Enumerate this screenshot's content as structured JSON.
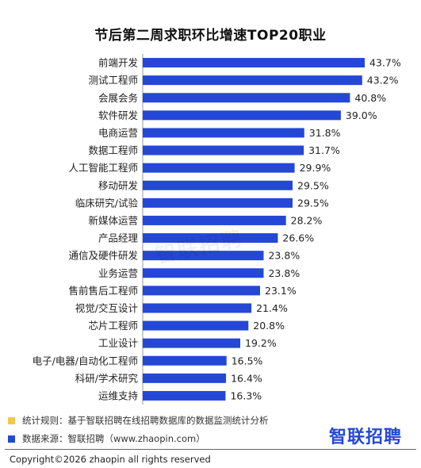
{
  "chart_data": {
    "type": "bar",
    "orientation": "horizontal",
    "title": "节后第二周求职环比增速TOP20职业",
    "categories": [
      "前端开发",
      "测试工程师",
      "会展会务",
      "软件研发",
      "电商运营",
      "数据工程师",
      "人工智能工程师",
      "移动研发",
      "临床研究/试验",
      "新媒体运营",
      "产品经理",
      "通信及硬件研发",
      "业务运营",
      "售前售后工程师",
      "视觉/交互设计",
      "芯片工程师",
      "工业设计",
      "电子/电器/自动化工程师",
      "科研/学术研究",
      "运维支持"
    ],
    "values": [
      43.7,
      43.2,
      40.8,
      39.0,
      31.8,
      31.7,
      29.9,
      29.5,
      29.5,
      28.2,
      26.6,
      23.8,
      23.8,
      23.1,
      21.4,
      20.8,
      19.2,
      16.5,
      16.4,
      16.3
    ],
    "value_labels": [
      "43.7%",
      "43.2%",
      "40.8%",
      "39.0%",
      "31.8%",
      "31.7%",
      "29.9%",
      "29.5%",
      "29.5%",
      "28.2%",
      "26.6%",
      "23.8%",
      "23.8%",
      "23.1%",
      "21.4%",
      "20.8%",
      "19.2%",
      "16.5%",
      "16.4%",
      "16.3%"
    ],
    "xlim": [
      0,
      45
    ],
    "grid": false,
    "bar_color": "#2447d6"
  },
  "watermark": "智联招聘",
  "notes": {
    "rule": "统计规则：基于智联招聘在线招聘数据库的数据监测统计分析",
    "rule_color": "#f2c94c",
    "source": "数据来源：智联招聘（www.zhaopin.com）",
    "source_color": "#2447d6"
  },
  "logo": "智联招聘",
  "copyright": "Copyright©2026 zhaopin all rights reserved"
}
